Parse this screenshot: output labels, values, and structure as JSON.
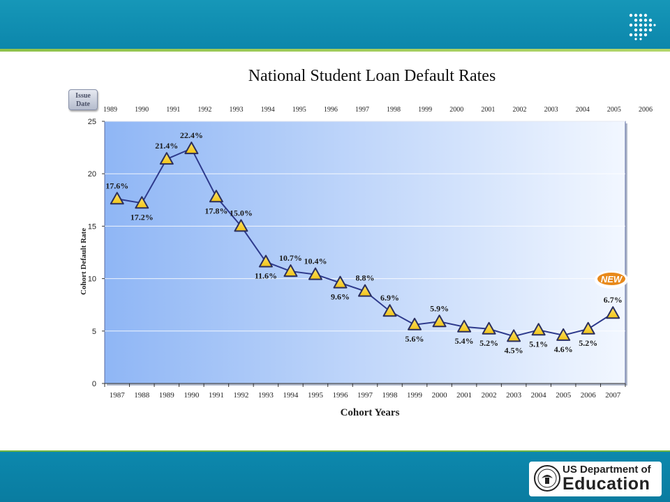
{
  "chart_data": {
    "type": "line",
    "title": "National Student Loan Default Rates",
    "xlabel": "Cohort Years",
    "ylabel": "Cohort Default Rate",
    "categories": [
      "1987",
      "1988",
      "1989",
      "1990",
      "1991",
      "1992",
      "1993",
      "1994",
      "1995",
      "1996",
      "1997",
      "1998",
      "1999",
      "2000",
      "2001",
      "2002",
      "2003",
      "2004",
      "2005",
      "2006",
      "2007"
    ],
    "series": [
      {
        "values": [
          17.6,
          17.2,
          21.4,
          22.4,
          17.8,
          15.0,
          11.6,
          10.7,
          10.4,
          9.6,
          8.8,
          6.9,
          5.6,
          5.9,
          5.4,
          5.2,
          4.5,
          5.1,
          4.6,
          5.2,
          6.7
        ],
        "data_labels": [
          "17.6%",
          "17.2%",
          "21.4%",
          "22.4%",
          "17.8%",
          "15.0%",
          "11.6%",
          "10.7%",
          "10.4%",
          "9.6%",
          "8.8%",
          "6.9%",
          "5.6%",
          "5.9%",
          "5.4%",
          "5.2%",
          "4.5%",
          "5.1%",
          "4.6%",
          "5.2%",
          "6.7%"
        ]
      }
    ],
    "ylim": [
      0,
      25
    ],
    "yticks": [
      0,
      5,
      10,
      15,
      20,
      25
    ],
    "grid": true,
    "issue_date_label": "Issue Date",
    "issue_years": [
      "1989",
      "1990",
      "1991",
      "1992",
      "1993",
      "1994",
      "1995",
      "1996",
      "1997",
      "1998",
      "1999",
      "2000",
      "2001",
      "2002",
      "2003",
      "2004",
      "2005",
      "2006"
    ],
    "new_badge": "NEW",
    "colors": {
      "line": "#2e3a8c",
      "marker": "#f2c418",
      "marker_edge": "#2b2f5e",
      "plot_bg_left": "#8fb6f5",
      "plot_bg_right": "#f2f7ff"
    }
  },
  "footer": {
    "org_line1": "US Department of",
    "org_line2": "Education"
  }
}
